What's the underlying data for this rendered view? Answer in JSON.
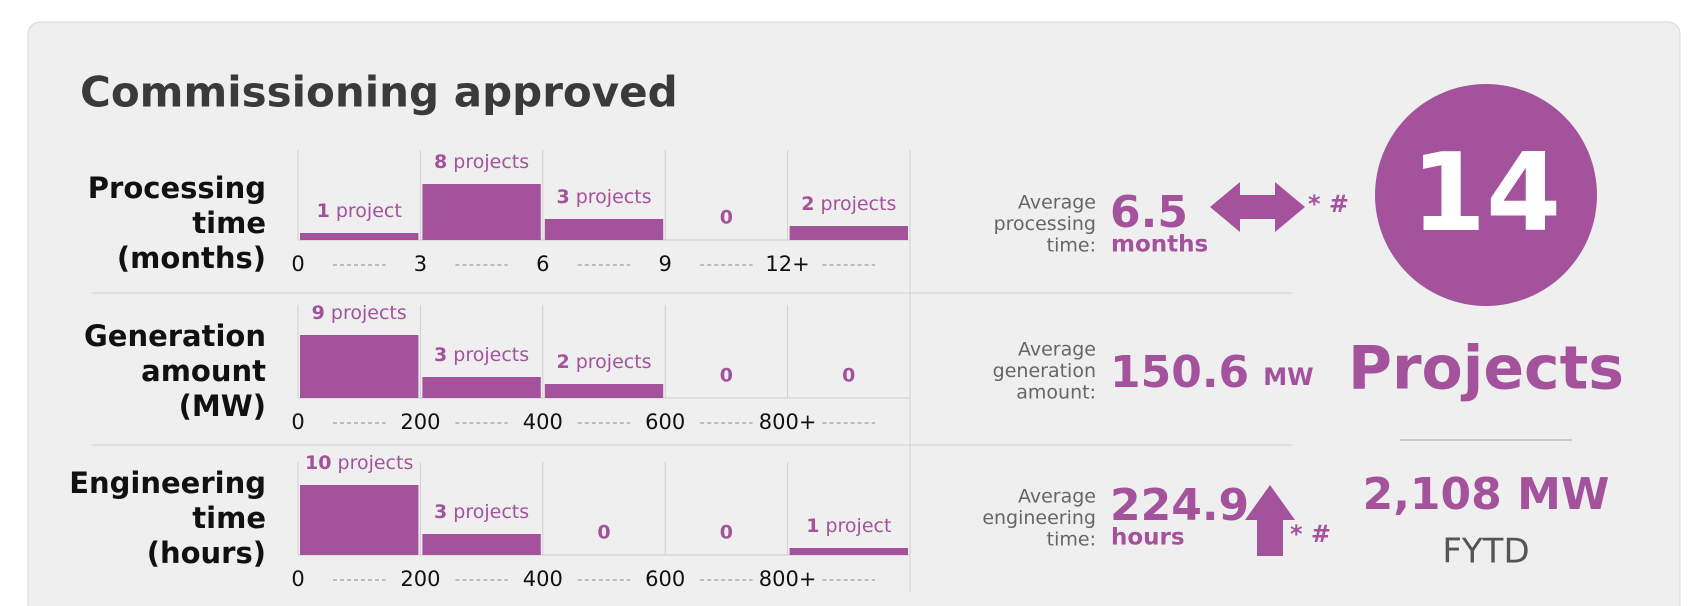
{
  "title": "Commissioning approved",
  "chart_data": [
    {
      "type": "histogram",
      "label_lines": [
        "Processing",
        "time",
        "(months)"
      ],
      "xticks": [
        0,
        3,
        6,
        9,
        {
          "value": 12,
          "label": "12+"
        }
      ],
      "values": [
        1,
        8,
        3,
        0,
        2
      ],
      "value_labels": [
        "1 project",
        "8 projects",
        "3 projects",
        "0",
        "2 projects"
      ],
      "color": "#a3529b"
    },
    {
      "type": "histogram",
      "label_lines": [
        "Generation",
        "amount",
        "(MW)"
      ],
      "xticks": [
        0,
        200,
        400,
        600,
        {
          "value": 800,
          "label": "800+"
        }
      ],
      "values": [
        9,
        3,
        2,
        0,
        0
      ],
      "value_labels": [
        "9 projects",
        "3 projects",
        "2 projects",
        "0",
        "0"
      ],
      "color": "#a3529b"
    },
    {
      "type": "histogram",
      "label_lines": [
        "Engineering",
        "time",
        "(hours)"
      ],
      "xticks": [
        0,
        200,
        400,
        600,
        {
          "value": 800,
          "label": "800+"
        }
      ],
      "values": [
        10,
        3,
        0,
        0,
        1
      ],
      "value_labels": [
        "10 projects",
        "3 projects",
        "0",
        "0",
        "1 project"
      ],
      "color": "#a3529b"
    }
  ],
  "averages": [
    {
      "label_lines": [
        "Average",
        "processing",
        "time:"
      ],
      "value": 6.5,
      "unit": "months",
      "indicator": "* #",
      "trend": "flat"
    },
    {
      "label_lines": [
        "Average",
        "generation",
        "amount:"
      ],
      "value": 150.6,
      "unit": "MW"
    },
    {
      "label_lines": [
        "Average",
        "engineering",
        "time:"
      ],
      "value": 224.9,
      "unit": "hours",
      "indicator": "* #",
      "trend": "up"
    }
  ],
  "summary": {
    "count": 14,
    "count_label": "Projects",
    "total": "2,108 MW",
    "period": "FYTD"
  }
}
